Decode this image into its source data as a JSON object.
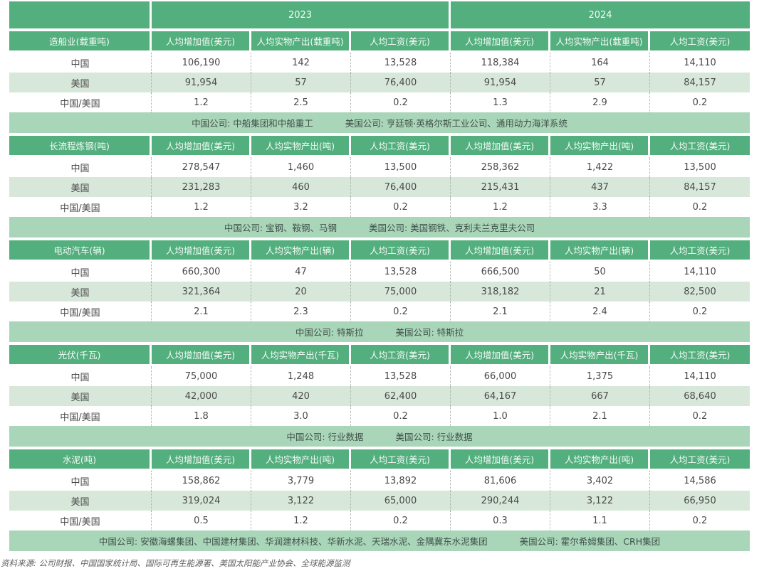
{
  "table": {
    "year_headers": [
      "2023",
      "2024"
    ],
    "row_labels": [
      "中国",
      "美国",
      "中国/美国"
    ],
    "sections": [
      {
        "category": "造船业(载重吨)",
        "col_headers": [
          "人均增加值(美元)",
          "人均实物产出(载重吨)",
          "人均工资(美元)",
          "人均增加值(美元)",
          "人均实物产出(载重吨)",
          "人均工资(美元)"
        ],
        "rows": [
          {
            "label": "中国",
            "values": [
              "106,190",
              "142",
              "13,528",
              "118,384",
              "164",
              "14,110"
            ]
          },
          {
            "label": "美国",
            "values": [
              "91,954",
              "57",
              "76,400",
              "91,954",
              "57",
              "84,157"
            ]
          },
          {
            "label": "中国/美国",
            "values": [
              "1.2",
              "2.5",
              "0.2",
              "1.3",
              "2.9",
              "0.2"
            ]
          }
        ],
        "note_cn": "中国公司: 中船集团和中船重工",
        "note_us": "美国公司: 亨廷顿·英格尔斯工业公司、通用动力海洋系统"
      },
      {
        "category": "长流程炼钢(吨)",
        "col_headers": [
          "人均增加值(美元)",
          "人均实物产出(吨)",
          "人均工资(美元)",
          "人均增加值(美元)",
          "人均实物产出(吨)",
          "人均工资(美元)"
        ],
        "rows": [
          {
            "label": "中国",
            "values": [
              "278,547",
              "1,460",
              "13,500",
              "258,362",
              "1,422",
              "13,500"
            ]
          },
          {
            "label": "美国",
            "values": [
              "231,283",
              "460",
              "76,400",
              "215,431",
              "437",
              "84,157"
            ]
          },
          {
            "label": "中国/美国",
            "values": [
              "1.2",
              "3.2",
              "0.2",
              "1.2",
              "3.3",
              "0.2"
            ]
          }
        ],
        "note_cn": "中国公司: 宝钢、鞍钢、马钢",
        "note_us": "美国公司: 美国钢铁、克利夫兰克里夫公司"
      },
      {
        "category": "电动汽车(辆)",
        "col_headers": [
          "人均增加值(美元)",
          "人均实物产出(辆)",
          "人均工资(美元)",
          "人均增加值(美元)",
          "人均实物产出(辆)",
          "人均工资(美元)"
        ],
        "rows": [
          {
            "label": "中国",
            "values": [
              "660,300",
              "47",
              "13,528",
              "666,500",
              "50",
              "14,110"
            ]
          },
          {
            "label": "美国",
            "values": [
              "321,364",
              "20",
              "75,000",
              "318,182",
              "21",
              "82,500"
            ]
          },
          {
            "label": "中国/美国",
            "values": [
              "2.1",
              "2.3",
              "0.2",
              "2.1",
              "2.4",
              "0.2"
            ]
          }
        ],
        "note_cn": "中国公司: 特斯拉",
        "note_us": "美国公司: 特斯拉"
      },
      {
        "category": "光伏(千瓦)",
        "col_headers": [
          "人均增加值(美元)",
          "人均实物产出(千瓦)",
          "人均工资(美元)",
          "人均增加值(美元)",
          "人均实物产出(千瓦)",
          "人均工资(美元)"
        ],
        "rows": [
          {
            "label": "中国",
            "values": [
              "75,000",
              "1,248",
              "13,528",
              "66,000",
              "1,375",
              "14,110"
            ]
          },
          {
            "label": "美国",
            "values": [
              "42,000",
              "420",
              "62,400",
              "64,167",
              "667",
              "68,640"
            ]
          },
          {
            "label": "中国/美国",
            "values": [
              "1.8",
              "3.0",
              "0.2",
              "1.0",
              "2.1",
              "0.2"
            ]
          }
        ],
        "note_cn": "中国公司: 行业数据",
        "note_us": "美国公司: 行业数据"
      },
      {
        "category": "水泥(吨)",
        "col_headers": [
          "人均增加值(美元)",
          "人均实物产出(吨)",
          "人均工资(美元)",
          "人均增加值(美元)",
          "人均实物产出(吨)",
          "人均工资(美元)"
        ],
        "rows": [
          {
            "label": "中国",
            "values": [
              "158,862",
              "3,779",
              "13,892",
              "81,606",
              "3,402",
              "14,586"
            ]
          },
          {
            "label": "美国",
            "values": [
              "319,024",
              "3,122",
              "65,000",
              "290,244",
              "3,122",
              "66,950"
            ]
          },
          {
            "label": "中国/美国",
            "values": [
              "0.5",
              "1.2",
              "0.2",
              "0.3",
              "1.1",
              "0.2"
            ]
          }
        ],
        "note_cn": "中国公司: 安徽海螺集团、中国建材集团、华润建材科技、华新水泥、天瑞水泥、金隅冀东水泥集团",
        "note_us": "美国公司: 霍尔希姆集团、CRH集团"
      }
    ]
  },
  "footer": {
    "source": "资料来源: 公司财报、中国国家统计局、国际可再生能源署、美国太阳能产业协会、全球能源监测"
  },
  "colors": {
    "header_green": "#53af7d",
    "alt_row_green": "#d7e8da",
    "note_row_green": "#a9d5b9",
    "data_text": "#4a4a4a",
    "note_text": "#3f5147",
    "source_text": "#5e5e5e"
  }
}
